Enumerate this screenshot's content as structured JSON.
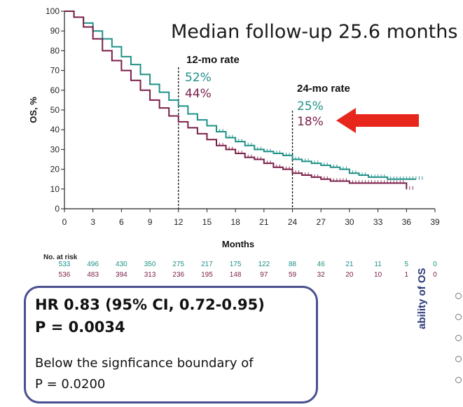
{
  "header": {
    "title": "Median follow-up 25.6 months"
  },
  "annotations": {
    "mo12": {
      "label": "12-mo rate",
      "arm1_rate": "52%",
      "arm2_rate": "44%"
    },
    "mo24": {
      "label": "24-mo rate",
      "arm1_rate": "25%",
      "arm2_rate": "18%"
    }
  },
  "colors": {
    "arm1": "#1e9187",
    "arm2": "#7a1e49",
    "arrow": "#e8271c",
    "box_border": "#4a4f8f"
  },
  "risk_table": {
    "header": "No. at risk",
    "arm1": [
      "533",
      "496",
      "430",
      "350",
      "275",
      "217",
      "175",
      "122",
      "88",
      "46",
      "21",
      "11",
      "5",
      "0"
    ],
    "arm2": [
      "536",
      "483",
      "394",
      "313",
      "236",
      "195",
      "148",
      "97",
      "59",
      "32",
      "20",
      "10",
      "1",
      "0"
    ]
  },
  "hr_box": {
    "line1": "HR 0.83 (95% CI, 0.72-0.95)",
    "line2": "P = 0.0034",
    "line3": "Below the signficance boundary of",
    "line4": "P = 0.0200"
  },
  "side_panel": {
    "label": "ability of OS"
  },
  "chart_data": {
    "type": "line",
    "xlabel": "Months",
    "ylabel": "OS, %",
    "xlim": [
      0,
      39
    ],
    "ylim": [
      0,
      100
    ],
    "xticks": [
      0,
      3,
      6,
      9,
      12,
      15,
      18,
      21,
      24,
      27,
      30,
      33,
      36,
      39
    ],
    "yticks": [
      0,
      10,
      20,
      30,
      40,
      50,
      60,
      70,
      80,
      90,
      100
    ],
    "reference_lines_x": [
      12,
      24
    ],
    "series": [
      {
        "x": [
          0,
          1,
          2,
          3,
          4,
          5,
          6,
          7,
          8,
          9,
          10,
          11,
          12,
          13,
          14,
          15,
          16,
          17,
          18,
          19,
          20,
          21,
          22,
          23,
          24,
          25,
          26,
          27,
          28,
          29,
          30,
          31,
          32,
          33,
          34,
          35,
          36,
          37
        ],
        "y": [
          100,
          97,
          94,
          90,
          86,
          82,
          77,
          73,
          68,
          63,
          59,
          55,
          52,
          48,
          45,
          42,
          39,
          36,
          34,
          32,
          30,
          29,
          28,
          27,
          25,
          24,
          23,
          22,
          21,
          20,
          18,
          17,
          16,
          16,
          15,
          15,
          15,
          15
        ]
      },
      {
        "x": [
          0,
          1,
          2,
          3,
          4,
          5,
          6,
          7,
          8,
          9,
          10,
          11,
          12,
          13,
          14,
          15,
          16,
          17,
          18,
          19,
          20,
          21,
          22,
          23,
          24,
          25,
          26,
          27,
          28,
          29,
          30,
          31,
          32,
          33,
          34,
          35,
          36
        ],
        "y": [
          100,
          97,
          92,
          86,
          80,
          75,
          70,
          65,
          60,
          55,
          51,
          47,
          44,
          41,
          38,
          35,
          32,
          30,
          28,
          26,
          25,
          23,
          21,
          20,
          18,
          17,
          16,
          15,
          14,
          14,
          13,
          13,
          13,
          13,
          13,
          13,
          10
        ]
      }
    ]
  }
}
